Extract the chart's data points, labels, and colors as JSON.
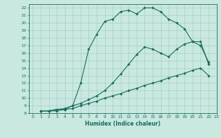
{
  "xlabel": "Humidex (Indice chaleur)",
  "xlim": [
    -0.5,
    23
  ],
  "ylim": [
    8,
    22.5
  ],
  "xticks": [
    0,
    1,
    2,
    3,
    4,
    5,
    6,
    7,
    8,
    9,
    10,
    11,
    12,
    13,
    14,
    15,
    16,
    17,
    18,
    19,
    20,
    21,
    22,
    23
  ],
  "yticks": [
    8,
    9,
    10,
    11,
    12,
    13,
    14,
    15,
    16,
    17,
    18,
    19,
    20,
    21,
    22
  ],
  "background_color": "#c8e8e0",
  "grid_color": "#a0c8c0",
  "line_color": "#1a6b5a",
  "line1_x": [
    1,
    2,
    3,
    4,
    5,
    6,
    7,
    8,
    9,
    10,
    11,
    12,
    13,
    14,
    15,
    16,
    17,
    18,
    19,
    20,
    21,
    22
  ],
  "line1_y": [
    8.3,
    8.3,
    8.3,
    8.5,
    8.6,
    9.0,
    9.3,
    9.6,
    10.0,
    10.3,
    10.6,
    11.0,
    11.3,
    11.7,
    12.0,
    12.3,
    12.7,
    13.0,
    13.3,
    13.7,
    14.0,
    13.0
  ],
  "line2_x": [
    1,
    2,
    3,
    4,
    5,
    6,
    7,
    8,
    9,
    10,
    11,
    12,
    13,
    14,
    15,
    16,
    17,
    18,
    19,
    20,
    21,
    22
  ],
  "line2_y": [
    8.3,
    8.3,
    8.5,
    8.6,
    9.0,
    9.3,
    9.8,
    10.3,
    11.0,
    12.0,
    13.2,
    14.5,
    15.8,
    16.8,
    16.5,
    16.0,
    15.5,
    16.5,
    17.2,
    17.5,
    17.0,
    14.8
  ],
  "line3_x": [
    1,
    2,
    3,
    4,
    5,
    6,
    7,
    8,
    9,
    10,
    11,
    12,
    13,
    14,
    15,
    16,
    17,
    18,
    19,
    20,
    21,
    22
  ],
  "line3_y": [
    8.3,
    8.3,
    8.5,
    8.5,
    9.0,
    12.0,
    16.5,
    18.5,
    20.2,
    20.5,
    21.5,
    21.7,
    21.2,
    22.0,
    22.0,
    21.5,
    20.5,
    20.0,
    19.2,
    17.5,
    17.5,
    14.5
  ]
}
